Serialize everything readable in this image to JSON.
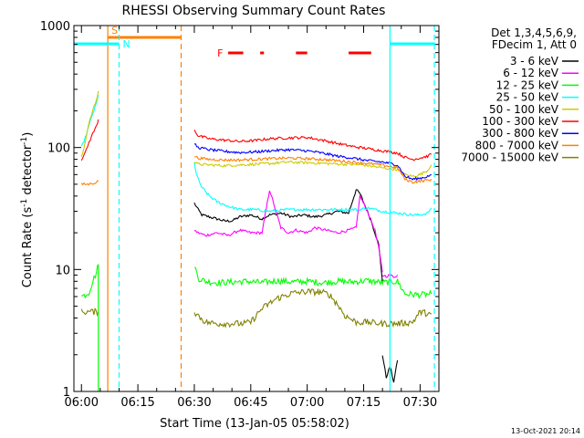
{
  "chart_data": {
    "type": "line",
    "title": "RHESSI Observing Summary Count Rates",
    "xlabel": "Start Time (13-Jan-05 05:58:02)",
    "ylabel_main": "Count Rate (s",
    "ylabel_sup": "-1",
    "ylabel_rest": " detector",
    "ylabel_end": ")",
    "yscale": "log",
    "ylim": [
      1,
      1000
    ],
    "xlim_minutes": [
      -2.0,
      95.0
    ],
    "x_ticks": [
      {
        "label": "06:00",
        "minute": 0
      },
      {
        "label": "06:15",
        "minute": 15
      },
      {
        "label": "06:30",
        "minute": 30
      },
      {
        "label": "06:45",
        "minute": 45
      },
      {
        "label": "07:00",
        "minute": 60
      },
      {
        "label": "07:15",
        "minute": 75
      },
      {
        "label": "07:30",
        "minute": 90
      }
    ],
    "y_ticks": [
      {
        "label": "1",
        "value": 1
      },
      {
        "label": "10",
        "value": 10
      },
      {
        "label": "100",
        "value": 100
      },
      {
        "label": "1000",
        "value": 1000
      }
    ],
    "legend_header": [
      "Det 1,3,4,5,6,9,",
      "FDecim 1, Att 0"
    ],
    "legend_position": "right",
    "series": [
      {
        "name": "3 - 6 keV",
        "color": "#000000",
        "segments": [
          {
            "x": [
              30,
              31,
              32,
              34,
              36,
              38,
              40,
              42,
              45,
              48,
              50,
              53,
              56,
              59,
              62,
              65,
              68,
              71,
              73,
              74,
              76,
              77,
              79,
              80
            ],
            "y": [
              35,
              31,
              28,
              27,
              26,
              25,
              25,
              27,
              28,
              26,
              28,
              29,
              27,
              28,
              27,
              28,
              30,
              29,
              45,
              42,
              30,
              25,
              16,
              8
            ]
          },
          {
            "x": [
              80,
              81,
              82,
              83,
              84
            ],
            "y": [
              2.0,
              1.3,
              1.6,
              1.2,
              1.8
            ]
          }
        ]
      },
      {
        "name": "6 - 12 keV",
        "color": "#ff00ff",
        "segments": [
          {
            "x": [
              30,
              31,
              33,
              36,
              39,
              42,
              45,
              48,
              50,
              53,
              55,
              57,
              60,
              62,
              65,
              68,
              71,
              73,
              74,
              76,
              78,
              79,
              80
            ],
            "y": [
              21,
              20,
              19,
              20,
              19,
              21,
              20,
              20,
              45,
              22,
              20,
              21,
              20,
              22,
              21,
              20,
              21,
              22,
              40,
              30,
              21,
              15,
              9.5
            ]
          },
          {
            "x": [
              80,
              81,
              82,
              83,
              84
            ],
            "y": [
              9.0,
              8.8,
              9.0,
              8.7,
              9.0
            ]
          }
        ]
      },
      {
        "name": "12 - 25 keV",
        "color": "#00ff00",
        "segments": [
          {
            "x": [
              0,
              1,
              2,
              3,
              4,
              4.5
            ],
            "y": [
              6.0,
              6.2,
              6.5,
              8.0,
              9.5,
              11.0
            ]
          },
          {
            "x": [
              30,
              31,
              33,
              36,
              40,
              44,
              48,
              52,
              56,
              60,
              64,
              68,
              72,
              76,
              80,
              84,
              86,
              90,
              93
            ],
            "y": [
              11.0,
              8.5,
              8.0,
              7.8,
              7.9,
              8.0,
              7.8,
              8.1,
              7.9,
              8.0,
              7.8,
              8.0,
              7.9,
              8.1,
              7.8,
              8.0,
              6.3,
              6.2,
              6.3
            ]
          }
        ]
      },
      {
        "name": "25 - 50 keV",
        "color": "#00ffff",
        "segments": [
          {
            "x": [
              0,
              1,
              2,
              3,
              4,
              4.5
            ],
            "y": [
              100,
              120,
              150,
              190,
              230,
              270
            ]
          },
          {
            "x": [
              30,
              30.5,
              31,
              32,
              34,
              36,
              39,
              42,
              46,
              50,
              55,
              60,
              65,
              70,
              74,
              76,
              78,
              80,
              84,
              88,
              90,
              92,
              93
            ],
            "y": [
              75,
              62,
              55,
              47,
              40,
              36,
              33,
              31,
              31,
              30,
              31,
              31,
              31,
              31,
              31,
              32,
              31,
              30,
              29,
              28,
              28,
              29,
              32
            ]
          }
        ]
      },
      {
        "name": "50 - 100 keV",
        "color": "#cccc00",
        "segments": [
          {
            "x": [
              0,
              1,
              2,
              3,
              4,
              4.5
            ],
            "y": [
              82,
              110,
              160,
              200,
              250,
              290
            ]
          },
          {
            "x": [
              30,
              31,
              34,
              38,
              42,
              46,
              50,
              55,
              60,
              65,
              70,
              75,
              80,
              84,
              86,
              88,
              90,
              92,
              93
            ],
            "y": [
              76,
              73,
              72,
              71,
              72,
              73,
              74,
              76,
              75,
              74,
              73,
              72,
              68,
              66,
              60,
              58,
              60,
              65,
              72
            ]
          }
        ]
      },
      {
        "name": "100 - 300 keV",
        "color": "#ff0000",
        "segments": [
          {
            "x": [
              0,
              1,
              2,
              3,
              4,
              4.5
            ],
            "y": [
              80,
              90,
              110,
              130,
              150,
              170
            ]
          },
          {
            "x": [
              30,
              31,
              34,
              38,
              42,
              46,
              50,
              55,
              60,
              64,
              68,
              72,
              76,
              80,
              84,
              86,
              88,
              90,
              92,
              93
            ],
            "y": [
              140,
              125,
              118,
              115,
              112,
              114,
              118,
              120,
              121,
              115,
              108,
              102,
              98,
              94,
              90,
              83,
              80,
              82,
              85,
              88
            ]
          }
        ]
      },
      {
        "name": "300 - 800 keV",
        "color": "#0000ff",
        "segments": [
          {
            "x": [
              30,
              31,
              34,
              38,
              42,
              46,
              50,
              55,
              60,
              64,
              68,
              72,
              76,
              80,
              84,
              86,
              88,
              90,
              92,
              93
            ],
            "y": [
              108,
              100,
              96,
              93,
              91,
              92,
              94,
              96,
              94,
              90,
              85,
              82,
              78,
              76,
              72,
              58,
              55,
              56,
              58,
              60
            ]
          }
        ]
      },
      {
        "name": "800 - 7000 keV",
        "color": "#ff8000",
        "segments": [
          {
            "x": [
              0,
              1,
              2,
              3,
              4,
              4.5
            ],
            "y": [
              50,
              50,
              50,
              51,
              52,
              53
            ]
          },
          {
            "x": [
              30,
              31,
              34,
              38,
              42,
              46,
              50,
              55,
              60,
              64,
              68,
              72,
              76,
              80,
              84,
              86,
              88,
              90,
              92,
              93
            ],
            "y": [
              85,
              82,
              80,
              79,
              79,
              80,
              81,
              82,
              81,
              80,
              78,
              76,
              74,
              72,
              68,
              55,
              52,
              53,
              54,
              55
            ]
          }
        ]
      },
      {
        "name": "7000 - 15000 keV",
        "color": "#808000",
        "segments": [
          {
            "x": [
              0,
              1,
              2,
              3,
              4.5
            ],
            "y": [
              4.5,
              4.5,
              4.5,
              4.5,
              4.5
            ]
          },
          {
            "x": [
              30,
              31,
              33,
              36,
              40,
              43,
              45,
              48,
              52,
              56,
              60,
              64,
              66,
              68,
              70,
              73,
              76,
              80,
              84,
              88,
              90,
              93
            ],
            "y": [
              4.5,
              4.2,
              3.7,
              3.6,
              3.6,
              3.6,
              3.7,
              4.8,
              5.8,
              6.4,
              6.6,
              6.5,
              6.2,
              5.2,
              4.2,
              3.7,
              3.7,
              3.6,
              3.6,
              3.7,
              4.5,
              4.3
            ]
          }
        ]
      }
    ],
    "markers": [
      {
        "label": "S",
        "color": "#ff8000",
        "kind": "bar",
        "x_start": 7.0,
        "x_end": 26.5,
        "line_x": [
          7.0,
          26.5
        ],
        "line_styles": [
          "solid",
          "dashed"
        ]
      },
      {
        "label": "N",
        "color": "#00ffff",
        "kind": "bar",
        "x_start": -2.0,
        "x_end": 10.0,
        "line_x": [
          10.0
        ],
        "line_styles": [
          "dashed"
        ]
      },
      {
        "label": "",
        "color": "#00ffff",
        "kind": "bar",
        "x_start": 82.0,
        "x_end": 94.0,
        "line_x": [
          82.0,
          93.8
        ],
        "line_styles": [
          "solid",
          "dashed"
        ]
      },
      {
        "label": "F",
        "color": "#ff0000",
        "kind": "dashes",
        "ranges": [
          [
            39.0,
            43.0
          ],
          [
            47.5,
            48.5
          ],
          [
            57.0,
            60.0
          ],
          [
            71.0,
            77.0
          ]
        ]
      }
    ],
    "green_drop_x": 4.5,
    "footer_date": "13-Oct-2021 20:14"
  }
}
